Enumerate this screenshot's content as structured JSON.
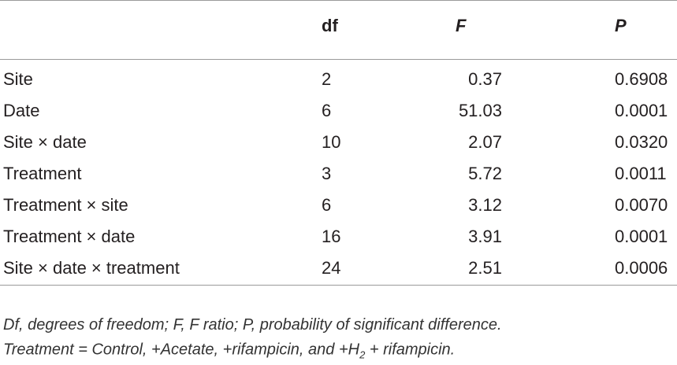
{
  "table": {
    "header": [
      "df",
      "F",
      "P"
    ],
    "rows": [
      [
        "Site",
        2,
        0.37,
        "0.6908"
      ],
      [
        "Date",
        6,
        51.03,
        "0.0001"
      ],
      [
        "Site × date",
        10,
        2.07,
        "0.0320"
      ],
      [
        "Treatment",
        3,
        5.72,
        "0.0011"
      ],
      [
        "Treatment × site",
        6,
        3.12,
        "0.0070"
      ],
      [
        "Treatment × date",
        16,
        3.91,
        "0.0001"
      ],
      [
        "Site × date × treatment",
        24,
        2.51,
        "0.0006"
      ]
    ]
  },
  "footnote": {
    "line1": "Df, degrees of freedom; F, F ratio; P, probability of significant difference.",
    "line2": [
      "Treatment = Control, +Acetate, +rifampicin, and +H",
      "2",
      " + rifampicin."
    ]
  }
}
